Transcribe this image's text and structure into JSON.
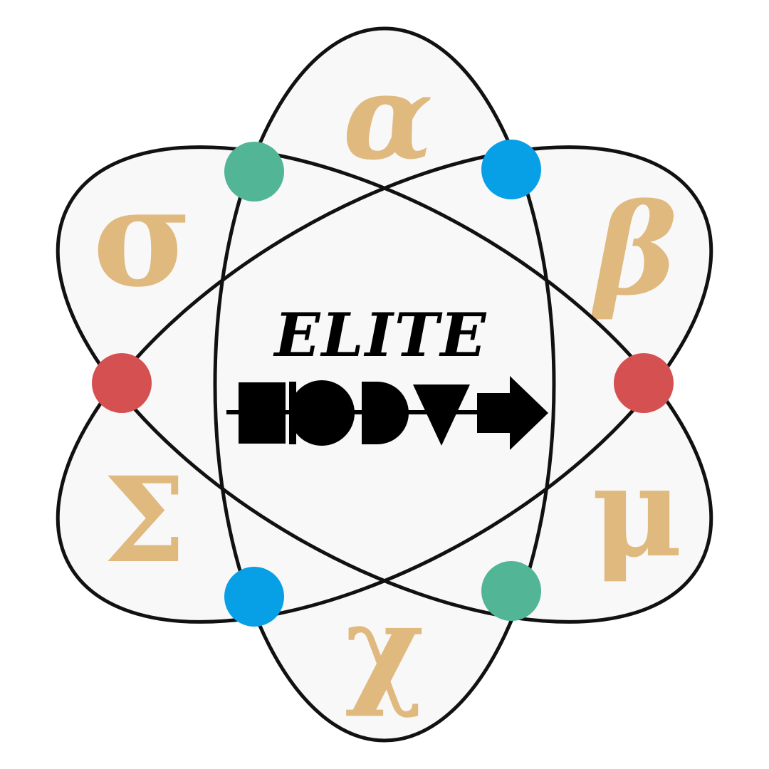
{
  "logo": {
    "brand_text": "ELITE",
    "symbols": {
      "alpha": "α",
      "beta": "β",
      "mu": "μ",
      "chi": "χ",
      "sigma_upper": "Σ",
      "sigma_lower": "σ"
    }
  },
  "colors": {
    "background": "#ffffff",
    "lobe_fill": "#f8f8f8",
    "stroke": "#111111",
    "symbol_tan": "#e0b97f",
    "node_green": "#52b595",
    "node_blue": "#079fe6",
    "node_red": "#d55151",
    "emblem_black": "#000000"
  }
}
